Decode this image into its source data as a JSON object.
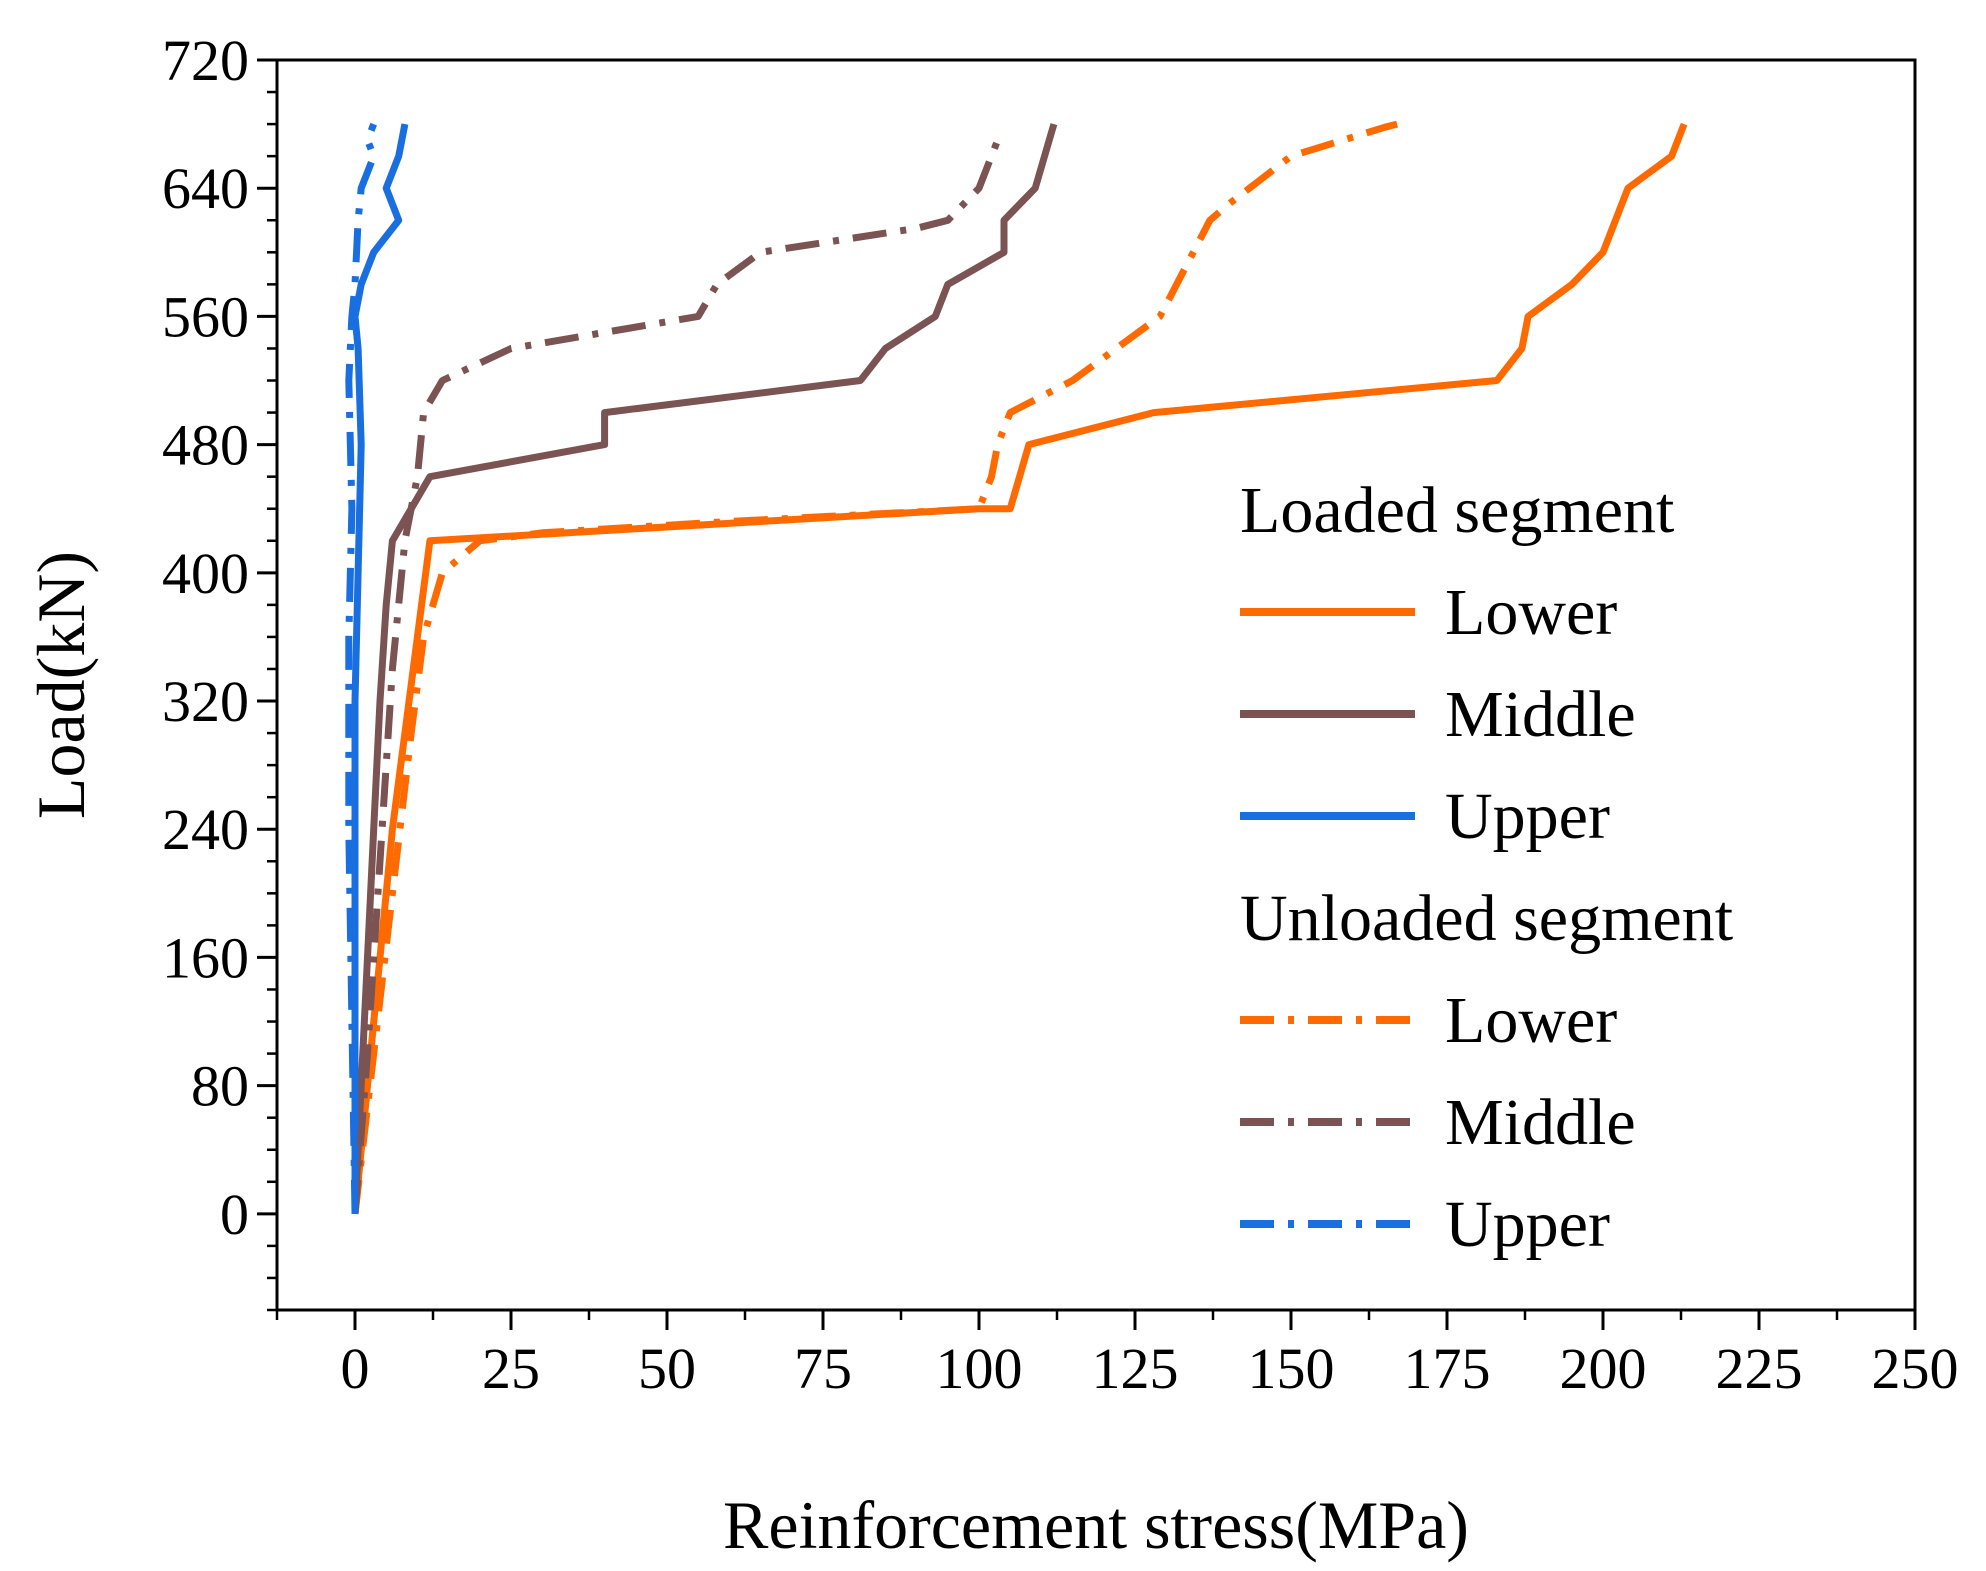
{
  "chart_data": {
    "type": "line",
    "title": "",
    "xlabel": "Reinforcement stress(MPa)",
    "ylabel": "Load(kN)",
    "xlim": [
      -12.5,
      250
    ],
    "ylim": [
      -60,
      720
    ],
    "xticks": [
      0,
      25,
      50,
      75,
      100,
      125,
      150,
      175,
      200,
      225,
      250
    ],
    "yticks": [
      0,
      80,
      160,
      240,
      320,
      400,
      480,
      560,
      640,
      720
    ],
    "xtick_labels": [
      "0",
      "25",
      "50",
      "75",
      "100",
      "125",
      "150",
      "175",
      "200",
      "225",
      "250"
    ],
    "ytick_labels": [
      "0",
      "80",
      "160",
      "240",
      "320",
      "400",
      "480",
      "560",
      "640",
      "720"
    ],
    "grid": false,
    "legend_position": "right",
    "legend_groups": [
      {
        "title": "Loaded segment",
        "entries": [
          {
            "label": "Lower",
            "series": 0
          },
          {
            "label": "Middle",
            "series": 1
          },
          {
            "label": "Upper",
            "series": 2
          }
        ]
      },
      {
        "title": "Unloaded segment",
        "entries": [
          {
            "label": "Lower",
            "series": 3
          },
          {
            "label": "Middle",
            "series": 4
          },
          {
            "label": "Upper",
            "series": 5
          }
        ]
      }
    ],
    "series": [
      {
        "name": "Loaded segment - Lower",
        "color": "#FF6A00",
        "style": "solid",
        "x": [
          0,
          2,
          4,
          6,
          8,
          10,
          12,
          100,
          105,
          108,
          128,
          183,
          187,
          188,
          195,
          200,
          204,
          211,
          213
        ],
        "y": [
          0,
          80,
          160,
          240,
          300,
          360,
          420,
          440,
          440,
          480,
          500,
          520,
          540,
          560,
          580,
          600,
          640,
          660,
          680
        ]
      },
      {
        "name": "Loaded segment - Middle",
        "color": "#7B5353",
        "style": "solid",
        "x": [
          0,
          1,
          2,
          3,
          4,
          5,
          6,
          9,
          12,
          40,
          40,
          81,
          85,
          93,
          95,
          104,
          104,
          109,
          112
        ],
        "y": [
          0,
          80,
          160,
          240,
          320,
          380,
          420,
          440,
          460,
          480,
          500,
          520,
          540,
          560,
          580,
          600,
          620,
          640,
          680
        ]
      },
      {
        "name": "Loaded segment - Upper",
        "color": "#1A6FE0",
        "style": "solid",
        "x": [
          0,
          0,
          0,
          0.5,
          1,
          0.5,
          0,
          1,
          3,
          7,
          5,
          7,
          8
        ],
        "y": [
          0,
          160,
          320,
          400,
          480,
          540,
          560,
          580,
          600,
          620,
          640,
          660,
          680
        ]
      },
      {
        "name": "Unloaded segment - Lower",
        "color": "#FF6A00",
        "style": "dashdot",
        "x": [
          0,
          3,
          6,
          9,
          11,
          14,
          20,
          30,
          60,
          100,
          102,
          103,
          105,
          115,
          129,
          137,
          140,
          150,
          165,
          167
        ],
        "y": [
          0,
          100,
          200,
          300,
          360,
          400,
          420,
          425,
          432,
          440,
          460,
          480,
          500,
          520,
          560,
          620,
          630,
          660,
          678,
          680
        ]
      },
      {
        "name": "Unloaded segment - Middle",
        "color": "#7B5353",
        "style": "dashdot",
        "x": [
          0,
          2,
          4,
          6,
          8,
          10,
          11,
          14,
          25,
          40,
          55,
          58,
          65,
          90,
          95,
          100,
          103
        ],
        "y": [
          0,
          100,
          220,
          340,
          420,
          460,
          500,
          520,
          540,
          550,
          560,
          580,
          600,
          615,
          620,
          640,
          670
        ]
      },
      {
        "name": "Unloaded segment - Upper",
        "color": "#1A6FE0",
        "style": "dashdot",
        "x": [
          0,
          -0.5,
          -1,
          -1,
          -0.5,
          -1,
          -0.5,
          0,
          0.5,
          1,
          2,
          3,
          2,
          3
        ],
        "y": [
          0,
          120,
          240,
          360,
          440,
          520,
          560,
          580,
          620,
          640,
          650,
          660,
          670,
          680
        ]
      }
    ]
  }
}
